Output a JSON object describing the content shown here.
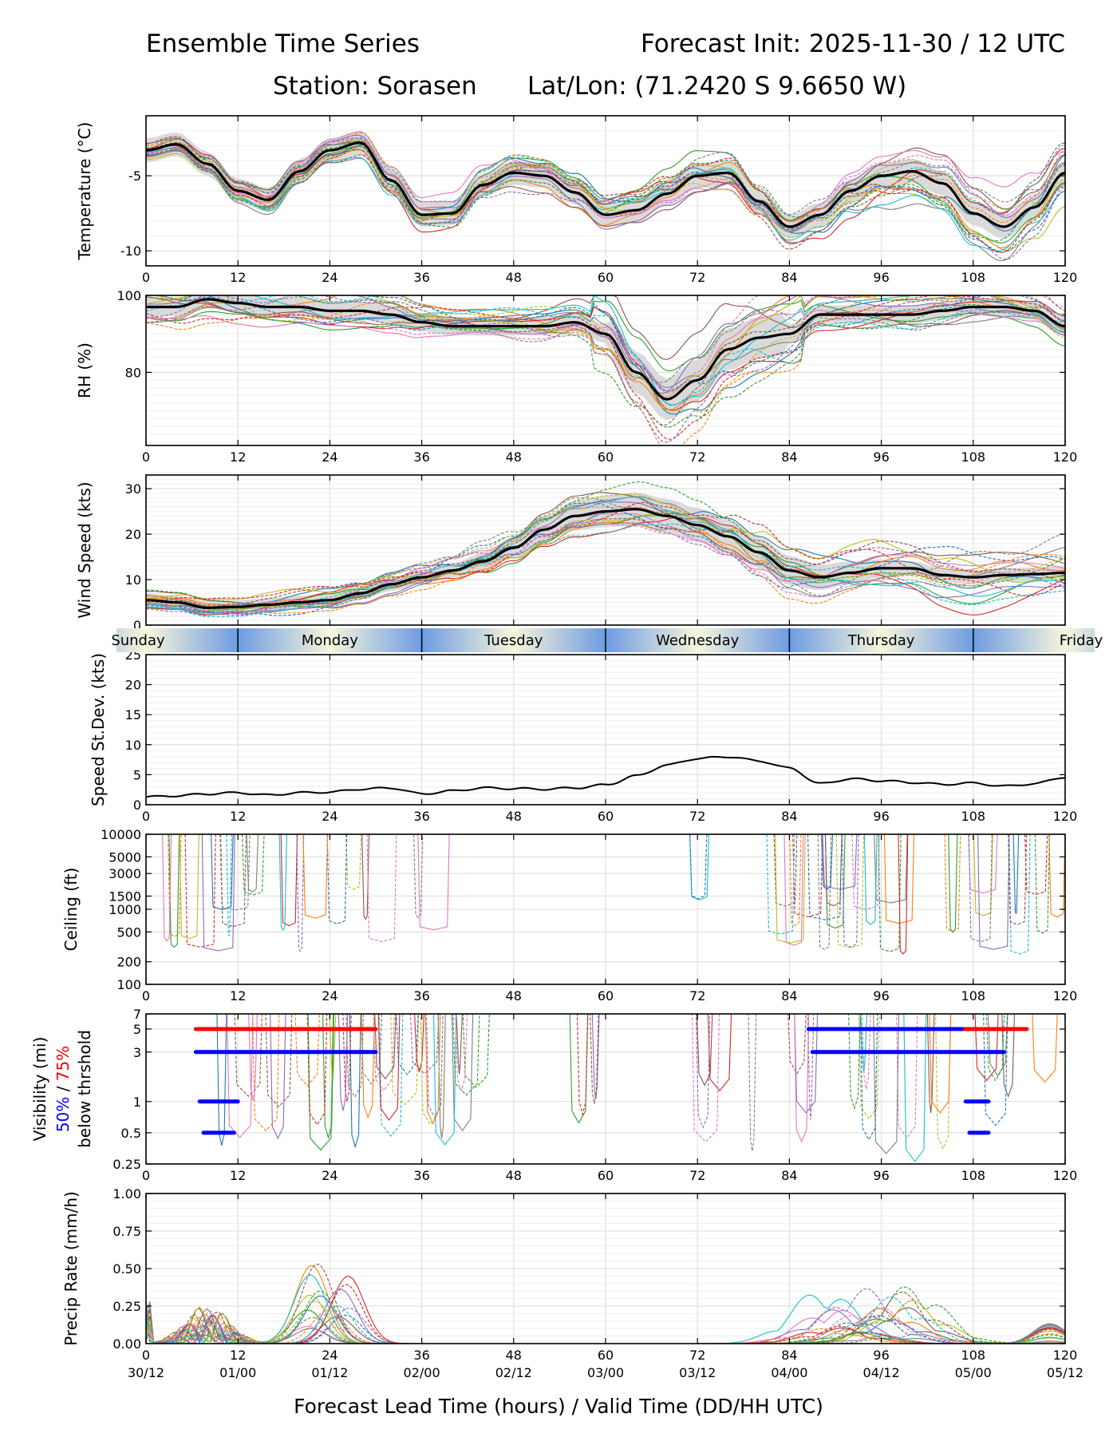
{
  "header": {
    "left_title": "Ensemble Time Series",
    "right_title": "Forecast Init: 2025-11-30 / 12 UTC",
    "station_line": "Station: Sorasen",
    "latlon_line": "Lat/Lon: (71.2420 S 9.6650 W)"
  },
  "x_axis": {
    "label": "Forecast Lead Time (hours) / Valid Time (DD/HH UTC)",
    "range": [
      0,
      120
    ],
    "ticks": [
      "0",
      "12",
      "24",
      "36",
      "48",
      "60",
      "72",
      "84",
      "96",
      "108",
      "120"
    ],
    "valid_times": [
      "30/12",
      "01/00",
      "01/12",
      "02/00",
      "02/12",
      "03/00",
      "03/12",
      "04/00",
      "04/12",
      "05/00",
      "05/12"
    ]
  },
  "day_band": [
    "Sunday",
    "Monday",
    "Tuesday",
    "Wednesday",
    "Thursday",
    "Friday"
  ],
  "colors": {
    "members": [
      "#1f77b4",
      "#ff7f0e",
      "#2ca02c",
      "#d62728",
      "#9467bd",
      "#8c564b",
      "#e377c2",
      "#7f7f7f",
      "#bcbd22",
      "#17becf"
    ],
    "mean": "#000000",
    "spread": "#d3d3d3",
    "vis50": "#0000ff",
    "vis75": "#ff0000",
    "day_light": "#f6f6dc",
    "day_dark": "#6f9be2"
  },
  "chart_data": [
    {
      "type": "line",
      "name": "temperature",
      "ylabel": "Temperature (°C)",
      "ylim": [
        -11,
        -1
      ],
      "yticks": [
        "-5",
        "-10"
      ],
      "ytick_values": [
        -5,
        -10
      ],
      "mean": {
        "x": [
          0,
          4,
          8,
          12,
          16,
          20,
          24,
          28,
          32,
          36,
          40,
          44,
          48,
          52,
          56,
          60,
          64,
          68,
          72,
          76,
          80,
          84,
          88,
          92,
          96,
          100,
          104,
          108,
          112,
          116,
          120
        ],
        "y": [
          -3.3,
          -2.9,
          -4.2,
          -6.0,
          -6.6,
          -4.7,
          -3.3,
          -2.8,
          -5.3,
          -7.6,
          -7.5,
          -5.6,
          -4.8,
          -5.0,
          -6.1,
          -7.6,
          -7.3,
          -6.2,
          -5.0,
          -4.8,
          -6.7,
          -8.4,
          -7.6,
          -6.0,
          -5.0,
          -4.7,
          -5.5,
          -7.5,
          -8.4,
          -7.1,
          -4.8
        ]
      },
      "spread": 0.8
    },
    {
      "type": "line",
      "name": "rh",
      "ylabel": "RH (%)",
      "ylim": [
        61,
        100
      ],
      "yticks": [
        "100",
        "80"
      ],
      "ytick_values": [
        100,
        80
      ],
      "mean": {
        "x": [
          0,
          4,
          8,
          12,
          16,
          20,
          24,
          28,
          32,
          36,
          40,
          44,
          48,
          52,
          56,
          60,
          64,
          68,
          72,
          76,
          80,
          84,
          88,
          92,
          96,
          100,
          104,
          108,
          112,
          116,
          120
        ],
        "y": [
          97,
          97,
          99,
          98,
          97,
          97,
          96,
          96,
          95,
          93,
          92,
          92,
          92,
          92,
          93,
          90,
          80,
          73,
          78,
          86,
          89,
          90,
          95,
          95,
          95,
          95,
          96,
          97,
          97,
          96,
          92
        ]
      },
      "spread": 3
    },
    {
      "type": "line",
      "name": "wind_speed",
      "ylabel": "Wind Speed (kts)",
      "ylim": [
        0,
        33
      ],
      "yticks": [
        "0",
        "10",
        "20",
        "30"
      ],
      "ytick_values": [
        0,
        10,
        20,
        30
      ],
      "mean": {
        "x": [
          0,
          4,
          8,
          12,
          16,
          20,
          24,
          28,
          32,
          36,
          40,
          44,
          48,
          52,
          56,
          60,
          64,
          68,
          72,
          76,
          80,
          84,
          88,
          92,
          96,
          100,
          104,
          108,
          112,
          116,
          120
        ],
        "y": [
          5.5,
          5,
          3.8,
          4,
          4.5,
          5,
          5.5,
          7,
          9,
          10.5,
          12,
          14,
          17,
          21,
          24,
          25,
          25.5,
          24,
          22,
          19.5,
          16,
          12,
          10.5,
          11.5,
          12.5,
          12.5,
          11,
          10.5,
          11,
          11.2,
          11.5
        ]
      },
      "spread": 2.5
    },
    {
      "type": "line",
      "name": "speed_stdev",
      "ylabel": "Speed St.Dev. (kts)",
      "ylim": [
        0,
        25
      ],
      "yticks": [
        "0",
        "5",
        "10",
        "15",
        "20",
        "25"
      ],
      "ytick_values": [
        0,
        5,
        10,
        15,
        20,
        25
      ],
      "mean": {
        "x": [
          0,
          4,
          8,
          12,
          16,
          20,
          24,
          28,
          32,
          36,
          40,
          44,
          48,
          52,
          56,
          60,
          64,
          68,
          72,
          76,
          80,
          84,
          88,
          92,
          96,
          100,
          104,
          108,
          112,
          116,
          120
        ],
        "y": [
          1.3,
          1.5,
          1.8,
          2,
          1.6,
          2,
          2.1,
          2.6,
          2.8,
          1.8,
          2.3,
          2.8,
          2.7,
          2.6,
          2.8,
          3.3,
          4.8,
          6.6,
          7.7,
          8.0,
          7.3,
          6.1,
          3.5,
          4.3,
          4.0,
          3.7,
          3.4,
          3.6,
          3.1,
          3.5,
          4.6
        ]
      }
    },
    {
      "type": "line",
      "name": "ceiling",
      "ylabel": "Ceiling (ft)",
      "yscale": "log",
      "ylim": [
        100,
        10000
      ],
      "yticks": [
        "10000",
        "5000",
        "3000",
        "1500",
        "1000",
        "500",
        "200",
        "100"
      ],
      "ytick_values": [
        10000,
        5000,
        3000,
        1500,
        1000,
        500,
        200,
        100
      ]
    },
    {
      "type": "line",
      "name": "visibility",
      "ylabel": "Visibility (mi)",
      "ylabel_50": "50%",
      "ylabel_sep": " / ",
      "ylabel_75": "75%",
      "ylabel2": "below thrshold",
      "yscale": "log",
      "ylim": [
        0.25,
        7
      ],
      "yticks": [
        "7",
        "5",
        "3",
        "1",
        "0.5",
        "0.25"
      ],
      "ytick_values": [
        7,
        5,
        3,
        1,
        0.5,
        0.25
      ],
      "threshold_bars": [
        {
          "threshold": 5,
          "pct": 75,
          "start": 6.5,
          "end": 30
        },
        {
          "threshold": 5,
          "pct": 75,
          "start": 106.5,
          "end": 115
        },
        {
          "threshold": 5,
          "pct": 50,
          "start": 86.5,
          "end": 106.5
        },
        {
          "threshold": 3,
          "pct": 50,
          "start": 6.5,
          "end": 30
        },
        {
          "threshold": 3,
          "pct": 50,
          "start": 87,
          "end": 112
        },
        {
          "threshold": 1,
          "pct": 50,
          "start": 7,
          "end": 12
        },
        {
          "threshold": 1,
          "pct": 50,
          "start": 107,
          "end": 110
        },
        {
          "threshold": 0.5,
          "pct": 50,
          "start": 7.5,
          "end": 11.5
        },
        {
          "threshold": 0.5,
          "pct": 50,
          "start": 107.5,
          "end": 110
        }
      ]
    },
    {
      "type": "line",
      "name": "precip",
      "ylabel": "Precip Rate (mm/h)",
      "ylim": [
        0,
        1
      ],
      "yticks": [
        "1.00",
        "0.75",
        "0.50",
        "0.25",
        "0.00"
      ],
      "ytick_values": [
        1.0,
        0.75,
        0.5,
        0.25,
        0.0
      ]
    }
  ]
}
